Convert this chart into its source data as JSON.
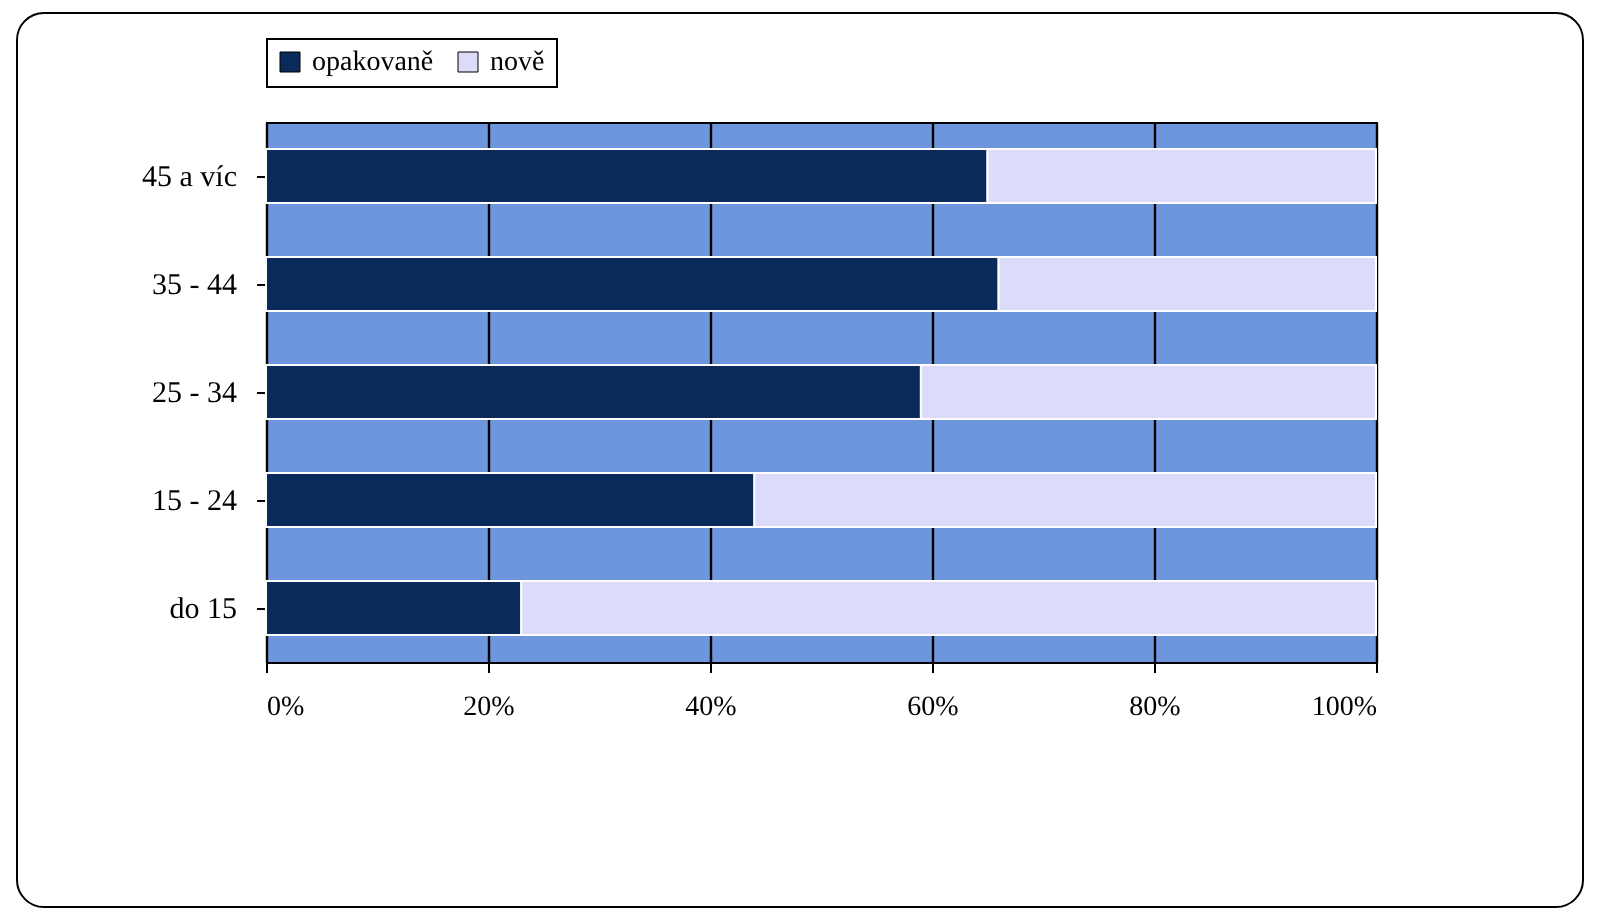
{
  "chart_data": {
    "type": "bar",
    "orientation": "horizontal",
    "stacked": true,
    "categories": [
      "45 a víc",
      "35 - 44",
      "25 - 34",
      "15 - 24",
      "do 15"
    ],
    "series": [
      {
        "name": "opakovaně",
        "color": "#0a2a5c",
        "values": [
          65,
          66,
          59,
          44,
          23
        ]
      },
      {
        "name": "nově",
        "color": "#dcdcfa",
        "values": [
          35,
          34,
          41,
          56,
          77
        ]
      }
    ],
    "xlim": [
      0,
      100
    ],
    "xticks": [
      {
        "value": 0,
        "label": "0%"
      },
      {
        "value": 20,
        "label": "20%"
      },
      {
        "value": 40,
        "label": "40%"
      },
      {
        "value": 60,
        "label": "60%"
      },
      {
        "value": 80,
        "label": "80%"
      },
      {
        "value": 100,
        "label": "100%"
      }
    ],
    "grid": "x",
    "legend": "top"
  }
}
